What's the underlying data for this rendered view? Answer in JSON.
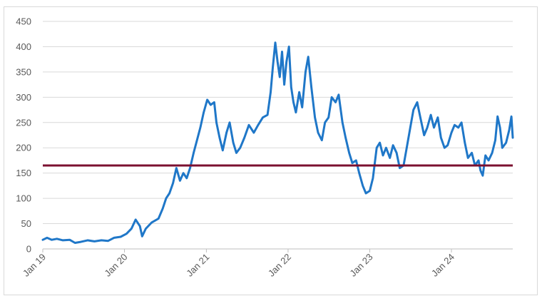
{
  "chart_data": {
    "type": "line",
    "title": "",
    "xlabel": "",
    "ylabel": "",
    "xlim": [
      "2019-01",
      "2024-10"
    ],
    "ylim": [
      0,
      450
    ],
    "y_ticks": [
      "0",
      "50",
      "100",
      "150",
      "200",
      "250",
      "300",
      "350",
      "400",
      "450"
    ],
    "x_ticks": [
      {
        "date": "2019-01",
        "label": "Jan 19"
      },
      {
        "date": "2020-01",
        "label": "Jan 20"
      },
      {
        "date": "2021-01",
        "label": "Jan 21"
      },
      {
        "date": "2022-01",
        "label": "Jan 22"
      },
      {
        "date": "2023-01",
        "label": "Jan 23"
      },
      {
        "date": "2024-01",
        "label": "Jan 24"
      }
    ],
    "grid": "horizontal",
    "reference_line": {
      "y": 165,
      "color": "#7b1030"
    },
    "series": [
      {
        "color": "#1f77c8",
        "points": [
          [
            "2019-01-01",
            18
          ],
          [
            "2019-01-20",
            22
          ],
          [
            "2019-02-10",
            18
          ],
          [
            "2019-03-05",
            20
          ],
          [
            "2019-04-01",
            17
          ],
          [
            "2019-05-01",
            18
          ],
          [
            "2019-05-25",
            12
          ],
          [
            "2019-06-20",
            14
          ],
          [
            "2019-07-20",
            17
          ],
          [
            "2019-08-20",
            15
          ],
          [
            "2019-09-20",
            17
          ],
          [
            "2019-10-20",
            16
          ],
          [
            "2019-11-15",
            22
          ],
          [
            "2019-12-15",
            24
          ],
          [
            "2020-01-10",
            30
          ],
          [
            "2020-02-01",
            40
          ],
          [
            "2020-02-20",
            58
          ],
          [
            "2020-03-10",
            45
          ],
          [
            "2020-03-20",
            25
          ],
          [
            "2020-04-05",
            40
          ],
          [
            "2020-05-01",
            52
          ],
          [
            "2020-06-01",
            60
          ],
          [
            "2020-06-20",
            80
          ],
          [
            "2020-07-05",
            100
          ],
          [
            "2020-07-20",
            110
          ],
          [
            "2020-08-05",
            130
          ],
          [
            "2020-08-20",
            160
          ],
          [
            "2020-09-05",
            135
          ],
          [
            "2020-09-20",
            150
          ],
          [
            "2020-10-05",
            140
          ],
          [
            "2020-10-20",
            160
          ],
          [
            "2020-11-05",
            190
          ],
          [
            "2020-11-20",
            215
          ],
          [
            "2020-12-05",
            240
          ],
          [
            "2020-12-20",
            270
          ],
          [
            "2021-01-05",
            295
          ],
          [
            "2021-01-20",
            285
          ],
          [
            "2021-02-05",
            290
          ],
          [
            "2021-02-15",
            250
          ],
          [
            "2021-03-01",
            220
          ],
          [
            "2021-03-15",
            195
          ],
          [
            "2021-04-01",
            230
          ],
          [
            "2021-04-15",
            250
          ],
          [
            "2021-05-01",
            210
          ],
          [
            "2021-05-15",
            190
          ],
          [
            "2021-06-01",
            200
          ],
          [
            "2021-06-20",
            220
          ],
          [
            "2021-07-10",
            245
          ],
          [
            "2021-08-01",
            230
          ],
          [
            "2021-08-20",
            245
          ],
          [
            "2021-09-10",
            260
          ],
          [
            "2021-10-01",
            265
          ],
          [
            "2021-10-15",
            310
          ],
          [
            "2021-10-25",
            360
          ],
          [
            "2021-11-05",
            408
          ],
          [
            "2021-11-15",
            370
          ],
          [
            "2021-11-25",
            340
          ],
          [
            "2021-12-05",
            390
          ],
          [
            "2021-12-15",
            325
          ],
          [
            "2021-12-25",
            370
          ],
          [
            "2022-01-05",
            400
          ],
          [
            "2022-01-15",
            320
          ],
          [
            "2022-01-25",
            290
          ],
          [
            "2022-02-05",
            270
          ],
          [
            "2022-02-20",
            310
          ],
          [
            "2022-03-05",
            280
          ],
          [
            "2022-03-20",
            350
          ],
          [
            "2022-04-01",
            380
          ],
          [
            "2022-04-15",
            320
          ],
          [
            "2022-05-01",
            260
          ],
          [
            "2022-05-15",
            230
          ],
          [
            "2022-06-01",
            215
          ],
          [
            "2022-06-15",
            250
          ],
          [
            "2022-07-01",
            260
          ],
          [
            "2022-07-15",
            300
          ],
          [
            "2022-08-01",
            290
          ],
          [
            "2022-08-15",
            305
          ],
          [
            "2022-09-01",
            250
          ],
          [
            "2022-09-15",
            220
          ],
          [
            "2022-10-01",
            190
          ],
          [
            "2022-10-15",
            170
          ],
          [
            "2022-11-01",
            175
          ],
          [
            "2022-11-15",
            150
          ],
          [
            "2022-12-01",
            125
          ],
          [
            "2022-12-15",
            110
          ],
          [
            "2023-01-01",
            115
          ],
          [
            "2023-01-15",
            140
          ],
          [
            "2023-02-01",
            200
          ],
          [
            "2023-02-15",
            210
          ],
          [
            "2023-03-01",
            185
          ],
          [
            "2023-03-15",
            200
          ],
          [
            "2023-04-01",
            180
          ],
          [
            "2023-04-15",
            205
          ],
          [
            "2023-05-01",
            190
          ],
          [
            "2023-05-15",
            160
          ],
          [
            "2023-06-01",
            165
          ],
          [
            "2023-06-15",
            200
          ],
          [
            "2023-07-01",
            240
          ],
          [
            "2023-07-15",
            275
          ],
          [
            "2023-08-01",
            290
          ],
          [
            "2023-08-15",
            260
          ],
          [
            "2023-09-01",
            225
          ],
          [
            "2023-09-15",
            240
          ],
          [
            "2023-10-01",
            265
          ],
          [
            "2023-10-15",
            240
          ],
          [
            "2023-11-01",
            260
          ],
          [
            "2023-11-15",
            220
          ],
          [
            "2023-12-01",
            200
          ],
          [
            "2023-12-15",
            205
          ],
          [
            "2024-01-01",
            230
          ],
          [
            "2024-01-15",
            245
          ],
          [
            "2024-02-01",
            240
          ],
          [
            "2024-02-15",
            250
          ],
          [
            "2024-03-01",
            210
          ],
          [
            "2024-03-15",
            180
          ],
          [
            "2024-04-01",
            190
          ],
          [
            "2024-04-15",
            165
          ],
          [
            "2024-05-01",
            175
          ],
          [
            "2024-05-10",
            155
          ],
          [
            "2024-05-20",
            145
          ],
          [
            "2024-06-01",
            185
          ],
          [
            "2024-06-15",
            175
          ],
          [
            "2024-07-01",
            190
          ],
          [
            "2024-07-15",
            215
          ],
          [
            "2024-07-25",
            262
          ],
          [
            "2024-08-05",
            240
          ],
          [
            "2024-08-15",
            200
          ],
          [
            "2024-09-01",
            210
          ],
          [
            "2024-09-15",
            235
          ],
          [
            "2024-09-25",
            262
          ],
          [
            "2024-10-01",
            220
          ]
        ]
      }
    ]
  }
}
